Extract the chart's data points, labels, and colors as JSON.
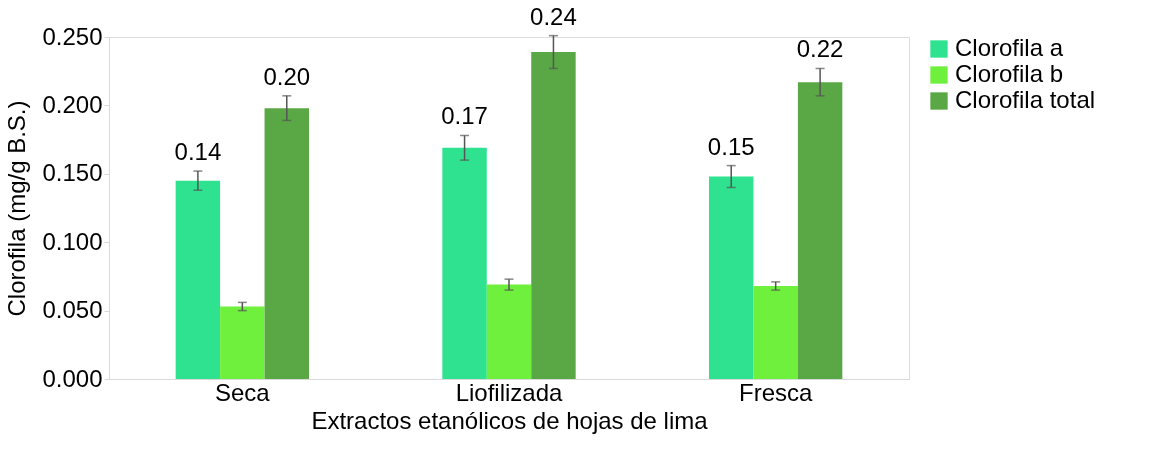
{
  "chart_data": {
    "type": "bar",
    "xlabel": "Extractos etanólicos de hojas de lima",
    "ylabel": "Clorofila (mg/g B.S.)",
    "categories": [
      "Seca",
      "Liofilizada",
      "Fresca"
    ],
    "series": [
      {
        "name": "Clorofila a",
        "color": "#2ee28f",
        "values": [
          0.145,
          0.169,
          0.148
        ],
        "errors": [
          0.007,
          0.009,
          0.008
        ],
        "value_labels": [
          "0.14",
          "0.17",
          "0.15"
        ]
      },
      {
        "name": "Clorofila b",
        "color": "#6ef03c",
        "values": [
          0.053,
          0.069,
          0.068
        ],
        "errors": [
          0.003,
          0.004,
          0.003
        ],
        "value_labels": [
          null,
          null,
          null
        ]
      },
      {
        "name": "Clorofila total",
        "color": "#5aa845",
        "values": [
          0.198,
          0.239,
          0.217
        ],
        "errors": [
          0.009,
          0.012,
          0.01
        ],
        "value_labels": [
          "0.20",
          "0.24",
          "0.22"
        ]
      }
    ],
    "ylim": [
      0,
      0.25
    ],
    "yticks": [
      {
        "value": 0,
        "label": "0.000"
      },
      {
        "value": 0.05,
        "label": "0.050"
      },
      {
        "value": 0.1,
        "label": "0.100"
      },
      {
        "value": 0.15,
        "label": "0.150"
      },
      {
        "value": 0.2,
        "label": "0.200"
      },
      {
        "value": 0.25,
        "label": "0.250"
      }
    ],
    "grid": false,
    "legend": "right"
  }
}
